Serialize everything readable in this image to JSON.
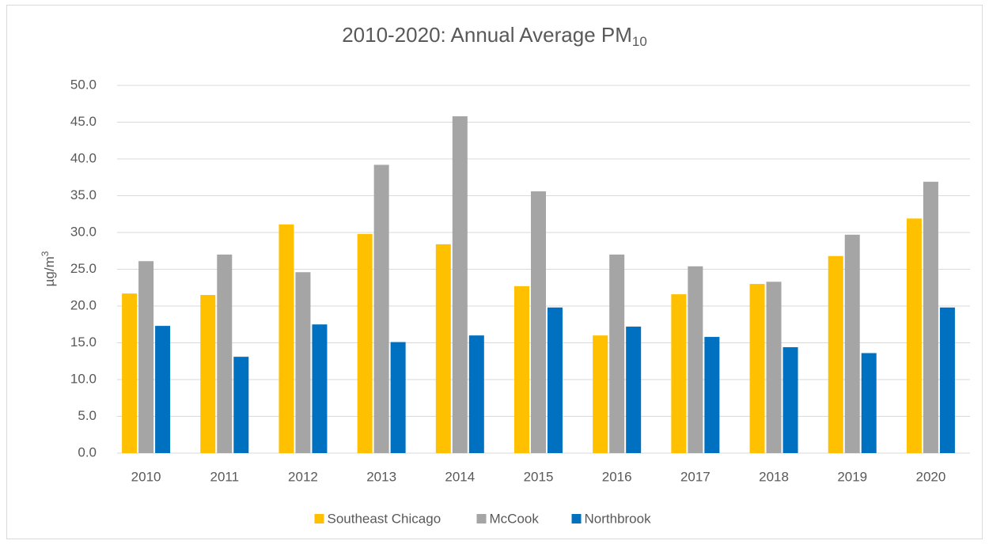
{
  "chart_data": {
    "type": "bar",
    "title": "2010-2020: Annual Average PM",
    "title_subscript": "10",
    "y_label": "µg/m",
    "y_label_superscript": "3",
    "categories": [
      "2010",
      "2011",
      "2012",
      "2013",
      "2014",
      "2015",
      "2016",
      "2017",
      "2018",
      "2019",
      "2020"
    ],
    "series": [
      {
        "name": "Southeast Chicago",
        "color": "#FFC000",
        "values": [
          21.7,
          21.5,
          31.1,
          29.8,
          28.4,
          22.7,
          16.0,
          21.6,
          23.0,
          26.8,
          31.9
        ]
      },
      {
        "name": "McCook",
        "color": "#A5A5A5",
        "values": [
          26.1,
          27.0,
          24.6,
          39.2,
          45.8,
          35.6,
          27.0,
          25.4,
          23.3,
          29.7,
          36.9
        ]
      },
      {
        "name": "Northbrook",
        "color": "#0070C0",
        "values": [
          17.3,
          13.1,
          17.5,
          15.1,
          16.0,
          19.8,
          17.2,
          15.8,
          14.4,
          13.6,
          19.8
        ]
      }
    ],
    "ylim": [
      0,
      50
    ],
    "yticks": [
      {
        "value": 0,
        "label": "0.0"
      },
      {
        "value": 5,
        "label": "5.0"
      },
      {
        "value": 10,
        "label": "10.0"
      },
      {
        "value": 15,
        "label": "15.0"
      },
      {
        "value": 20,
        "label": "20.0"
      },
      {
        "value": 25,
        "label": "25.0"
      },
      {
        "value": 30,
        "label": "30.0"
      },
      {
        "value": 35,
        "label": "35.0"
      },
      {
        "value": 40,
        "label": "40.0"
      },
      {
        "value": 45,
        "label": "45.0"
      },
      {
        "value": 50,
        "label": "50.0"
      }
    ],
    "grid": true,
    "legend": "bottom"
  }
}
